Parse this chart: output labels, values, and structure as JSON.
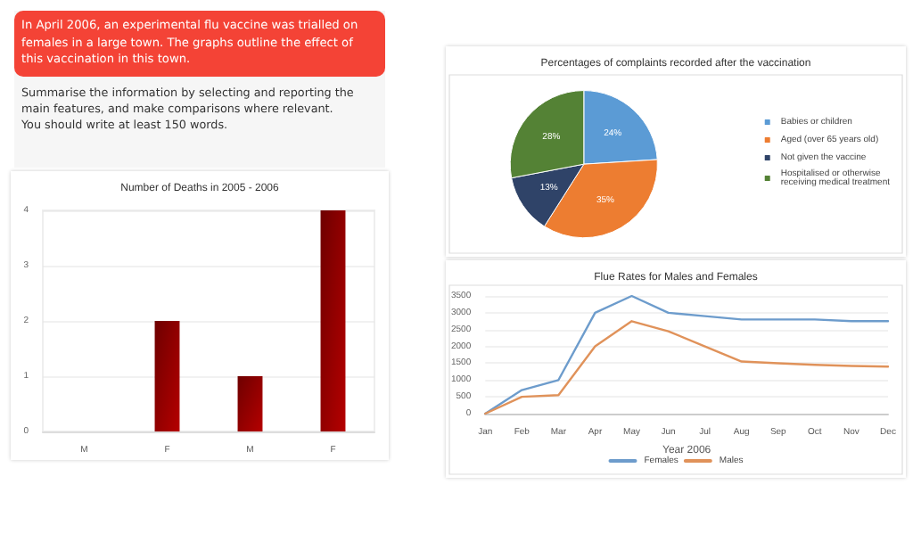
{
  "chart_data": [
    {
      "type": "other",
      "title": "In April 2006, an experimental flu vaccine was trialled on females in a large town. The graphs outline the effect of this vaccination in this town.",
      "annotations": [
        "Summarise the information by selecting and reporting the main features, and make comparisons where relevant.",
        "You should write at least 150 words."
      ]
    },
    {
      "type": "bar",
      "title": "Number of Deaths in 2005 - 2006",
      "categories": [
        "M",
        "F",
        "M",
        "F"
      ],
      "values": [
        0,
        2,
        1,
        4
      ],
      "color": "#b50000",
      "ylim": [
        0,
        4
      ],
      "yticks": [
        0,
        1,
        2,
        3,
        4
      ],
      "grid": "y"
    },
    {
      "type": "pie",
      "title": "Percentages of complaints recorded after the vaccination",
      "categories": [
        "Babies or children",
        "Aged (over 65 years old)",
        "Not given the vaccine",
        "Hospitalised or otherwise receiving medical treatment"
      ],
      "values": [
        24,
        35,
        13,
        28
      ],
      "colors": [
        "#5b9bd5",
        "#ed7d31",
        "#2f4368",
        "#548235"
      ],
      "value_labels": [
        "24%",
        "35%",
        "13%",
        "28%"
      ],
      "legend": "right"
    },
    {
      "type": "line",
      "title": "Flue Rates for Males and Females",
      "xlabel": "Year 2006",
      "categories": [
        "Jan",
        "Feb",
        "Mar",
        "Apr",
        "May",
        "Jun",
        "Jul",
        "Aug",
        "Sep",
        "Oct",
        "Nov",
        "Dec"
      ],
      "series": [
        {
          "name": "Females",
          "color": "#6d9ccc",
          "values": [
            0,
            700,
            1000,
            3000,
            3500,
            3000,
            2900,
            2800,
            2800,
            2800,
            2750,
            2750
          ]
        },
        {
          "name": "Males",
          "color": "#e0925a",
          "values": [
            0,
            500,
            550,
            2000,
            2750,
            2450,
            2000,
            1550,
            1500,
            1450,
            1420,
            1400
          ]
        }
      ],
      "ylim": [
        0,
        3500
      ],
      "yticks": [
        0,
        500,
        1000,
        1500,
        2000,
        2500,
        3000,
        3500
      ],
      "grid": "y",
      "legend": "bottom",
      "marker": "none"
    }
  ]
}
